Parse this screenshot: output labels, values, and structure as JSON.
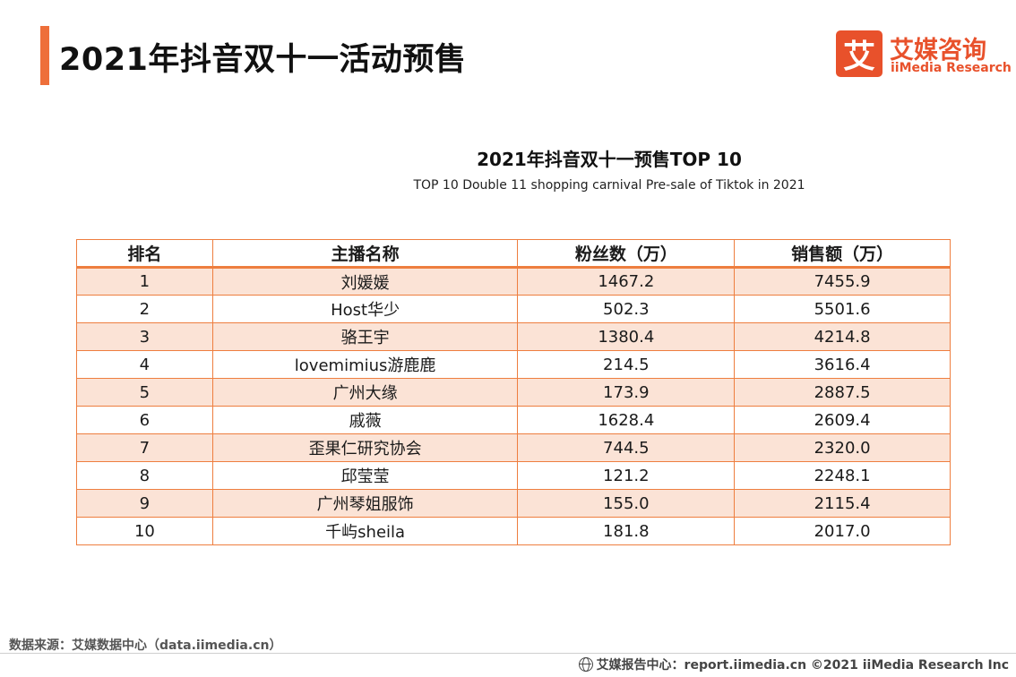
{
  "header": {
    "title": "2021年抖音双十一活动预售",
    "accent_color": "#ee6f3a"
  },
  "logo": {
    "mark": "艾",
    "name_cn": "艾媒咨询",
    "name_en": "iiMedia Research",
    "color": "#e8512b"
  },
  "chart_data": {
    "type": "table",
    "title": "2021年抖音双十一预售TOP 10",
    "subtitle": "TOP 10 Double 11 shopping carnival Pre-sale of Tiktok in 2021",
    "columns": [
      "排名",
      "主播名称",
      "粉丝数（万）",
      "销售额（万）"
    ],
    "rows": [
      [
        "1",
        "刘媛媛",
        "1467.2",
        "7455.9"
      ],
      [
        "2",
        "Host华少",
        "502.3",
        "5501.6"
      ],
      [
        "3",
        "骆王宇",
        "1380.4",
        "4214.8"
      ],
      [
        "4",
        "lovemimius游鹿鹿",
        "214.5",
        "3616.4"
      ],
      [
        "5",
        "广州大缘",
        "173.9",
        "2887.5"
      ],
      [
        "6",
        "戚薇",
        "1628.4",
        "2609.4"
      ],
      [
        "7",
        "歪果仁研究协会",
        "744.5",
        "2320.0"
      ],
      [
        "8",
        "邱莹莹",
        "121.2",
        "2248.1"
      ],
      [
        "9",
        "广州琴姐服饰",
        "155.0",
        "2115.4"
      ],
      [
        "10",
        "千屿sheila",
        "181.8",
        "2017.0"
      ]
    ],
    "border_color": "#ee7e3f",
    "stripe_color": "#fbe3d6"
  },
  "footer": {
    "source": "数据来源：艾媒数据中心（data.iimedia.cn）",
    "credit": "艾媒报告中心：report.iimedia.cn ©2021  iiMedia Research  Inc",
    "icon": "globe-icon"
  }
}
